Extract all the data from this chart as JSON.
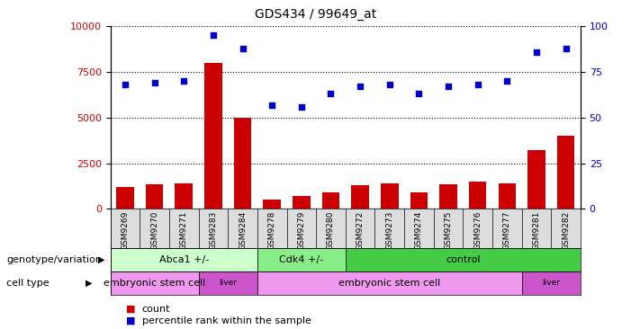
{
  "title": "GDS434 / 99649_at",
  "samples": [
    "GSM9269",
    "GSM9270",
    "GSM9271",
    "GSM9283",
    "GSM9284",
    "GSM9278",
    "GSM9279",
    "GSM9280",
    "GSM9272",
    "GSM9273",
    "GSM9274",
    "GSM9275",
    "GSM9276",
    "GSM9277",
    "GSM9281",
    "GSM9282"
  ],
  "counts": [
    1200,
    1350,
    1400,
    8000,
    5000,
    500,
    700,
    900,
    1300,
    1400,
    900,
    1350,
    1500,
    1400,
    3200,
    4000
  ],
  "percentiles": [
    68,
    69,
    70,
    95,
    88,
    57,
    56,
    63,
    67,
    68,
    63,
    67,
    68,
    70,
    86,
    88
  ],
  "ylim_left": [
    0,
    10000
  ],
  "ylim_right": [
    0,
    100
  ],
  "yticks_left": [
    0,
    2500,
    5000,
    7500,
    10000
  ],
  "yticks_right": [
    0,
    25,
    50,
    75,
    100
  ],
  "bar_color": "#cc0000",
  "dot_color": "#0000cc",
  "genotype_groups": [
    {
      "label": "Abca1 +/-",
      "start": 0,
      "end": 5,
      "color": "#ccffcc"
    },
    {
      "label": "Cdk4 +/-",
      "start": 5,
      "end": 8,
      "color": "#88ee88"
    },
    {
      "label": "control",
      "start": 8,
      "end": 16,
      "color": "#44cc44"
    }
  ],
  "celltype_groups": [
    {
      "label": "embryonic stem cell",
      "start": 0,
      "end": 3,
      "color": "#ee99ee"
    },
    {
      "label": "liver",
      "start": 3,
      "end": 5,
      "color": "#cc55cc"
    },
    {
      "label": "embryonic stem cell",
      "start": 5,
      "end": 14,
      "color": "#ee99ee"
    },
    {
      "label": "liver",
      "start": 14,
      "end": 16,
      "color": "#cc55cc"
    }
  ],
  "legend_count_label": "count",
  "legend_pct_label": "percentile rank within the sample",
  "genotype_row_label": "genotype/variation",
  "celltype_row_label": "cell type"
}
